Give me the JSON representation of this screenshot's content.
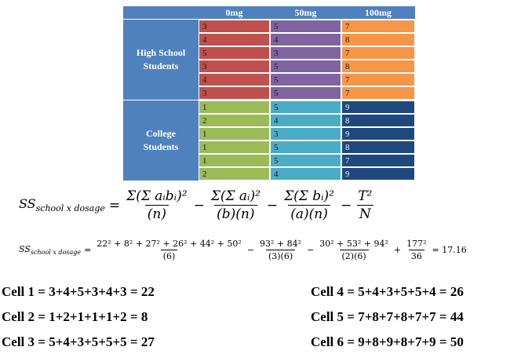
{
  "table": {
    "columns": [
      "0mg",
      "50mg",
      "100mg"
    ],
    "groups": [
      {
        "label_line1": "High School",
        "label_line2": "Students",
        "rows": [
          [
            3,
            5,
            7
          ],
          [
            4,
            4,
            8
          ],
          [
            5,
            3,
            7
          ],
          [
            3,
            5,
            8
          ],
          [
            4,
            5,
            7
          ],
          [
            3,
            5,
            7
          ]
        ]
      },
      {
        "label_line1": "College",
        "label_line2": "Students",
        "rows": [
          [
            1,
            5,
            9
          ],
          [
            2,
            4,
            8
          ],
          [
            1,
            3,
            9
          ],
          [
            1,
            5,
            8
          ],
          [
            1,
            5,
            7
          ],
          [
            2,
            4,
            9
          ]
        ]
      }
    ],
    "colors": {
      "header": "#4f81bd",
      "hs_0mg": "#c0504d",
      "hs_50mg": "#8064a2",
      "hs_100mg": "#f79646",
      "col_0mg": "#9bbb59",
      "col_50mg": "#4bacc6",
      "col_100mg": "#1f497d"
    }
  },
  "formula_general": {
    "lhs_main": "SS",
    "lhs_sub": "school x dosage",
    "eq": "=",
    "t1_num": "Σ(Σ aᵢbᵢ)²",
    "t1_den": "(n)",
    "minus1": "−",
    "t2_num": "Σ(Σ aᵢ)²",
    "t2_den": "(b)(n)",
    "minus2": "−",
    "t3_num": "Σ(Σ bᵢ)²",
    "t3_den": "(a)(n)",
    "minus3": "−",
    "t4_num": "T²",
    "t4_den": "N"
  },
  "formula_numeric": {
    "lhs_main": "SS",
    "lhs_sub": "school x dosage",
    "eq": "=",
    "t1_num": "22² + 8² + 27² + 26² + 44² + 50²",
    "t1_den": "(6)",
    "minus1": "−",
    "t2_num": "93² + 84²",
    "t2_den": "(3)(6)",
    "minus2": "−",
    "t3_num": "30² + 53² + 94²",
    "t3_den": "(2)(6)",
    "plus": "+",
    "t4_num": "177²",
    "t4_den": "36",
    "result": "= 17.16"
  },
  "cell_sums": [
    "Cell 1 = 3+4+5+3+4+3 = 22",
    "Cell 2 = 1+2+1+1+1+2 = 8",
    "Cell 3 = 5+4+3+5+5+5 = 27",
    "Cell 4 = 5+4+3+5+5+4 = 26",
    "Cell 5 = 7+8+7+8+7+7 = 44",
    "Cell 6 = 9+8+9+8+7+9 = 50"
  ]
}
